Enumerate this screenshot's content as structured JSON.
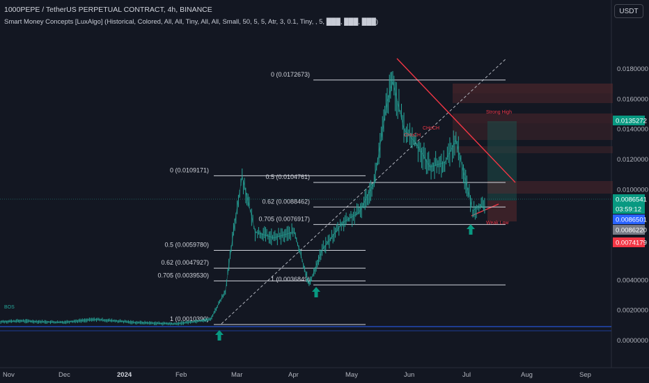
{
  "header": {
    "title": "1000PEPE / TetherUS PERPETUAL CONTRACT, 4h, BINANCE",
    "indicator": "Smart Money Concepts [LuxAlgo] (Historical, Colored, All, All, Tiny, All, All, Small, 50, 5, 5, Atr, 3, 0.1, Tiny, , 5, ███, ███, ███)"
  },
  "currency_button": "USDT",
  "colors": {
    "background": "#131722",
    "candle": "#26a69a",
    "trendline_red": "#f23645",
    "fib_line": "#d1d4dc",
    "arrow": "#089981",
    "zone_red": "#5b2a2e",
    "zone_green": "#1e4d48"
  },
  "chart_data": {
    "type": "line",
    "title": "1000PEPE / TetherUS PERPETUAL CONTRACT, 4h, BINANCE",
    "xlabel": "",
    "ylabel": "",
    "x_ticks": [
      "Nov",
      "Dec",
      "2024",
      "Feb",
      "Mar",
      "Apr",
      "May",
      "Jun",
      "Jul",
      "Aug",
      "Sep"
    ],
    "y_ticks": [
      "0.0180000",
      "0.0160000",
      "0.0140000",
      "0.0120000",
      "0.0100000",
      "0.0040000",
      "0.0020000",
      "0.0000000"
    ],
    "ylim": [
      0,
      0.0195
    ],
    "grid": false,
    "series": [
      {
        "type": "line",
        "x": [
          "2023-10-20",
          "2023-11-10",
          "2023-12-01",
          "2023-12-20",
          "2024-01-10",
          "2024-02-01",
          "2024-02-20",
          "2024-02-28",
          "2024-03-04",
          "2024-03-08",
          "2024-03-15",
          "2024-03-25",
          "2024-04-05",
          "2024-04-13",
          "2024-04-20",
          "2024-05-01",
          "2024-05-10",
          "2024-05-18",
          "2024-05-25",
          "2024-05-28",
          "2024-06-03",
          "2024-06-10",
          "2024-06-17",
          "2024-06-25",
          "2024-07-01",
          "2024-07-05",
          "2024-07-10",
          "2024-07-14",
          "2024-07-17"
        ],
        "y": [
          0.0012,
          0.0013,
          0.0012,
          0.0014,
          0.0012,
          0.0011,
          0.0014,
          0.0033,
          0.0078,
          0.0109,
          0.0072,
          0.0068,
          0.0072,
          0.0037,
          0.006,
          0.0078,
          0.0085,
          0.0105,
          0.0158,
          0.0172,
          0.014,
          0.013,
          0.0115,
          0.0118,
          0.0133,
          0.0112,
          0.0086,
          0.009,
          0.00865
        ]
      }
    ],
    "price_labels": [
      {
        "text": "0.0135272",
        "color": "#089981"
      },
      {
        "text": "0.0086541",
        "color": "#089981"
      },
      {
        "text": "03:59:12",
        "color": "#089981"
      },
      {
        "text": "0.0086501",
        "color": "#2962ff"
      },
      {
        "text": "0.0086220",
        "color": "#787b86"
      },
      {
        "text": "0.0074179",
        "color": "#f23645"
      }
    ],
    "fib_sets": [
      {
        "levels": [
          {
            "text": "0 (0.0109171)",
            "value": 0.0109171
          },
          {
            "text": "0.5 (0.0059780)",
            "value": 0.005978
          },
          {
            "text": "0.62 (0.0047927)",
            "value": 0.0047927
          },
          {
            "text": "0.705 (0.0039530)",
            "value": 0.003953
          },
          {
            "text": "1 (0.0010390)",
            "value": 0.001039
          }
        ]
      },
      {
        "levels": [
          {
            "text": "0 (0.0172673)",
            "value": 0.0172673
          },
          {
            "text": "0.5 (0.0104761)",
            "value": 0.0104761
          },
          {
            "text": "0.62 (0.0088462)",
            "value": 0.0088462
          },
          {
            "text": "0.705 (0.0076917)",
            "value": 0.0076917
          },
          {
            "text": "1 (0.0036849)",
            "value": 0.0036849
          }
        ]
      }
    ],
    "annotations": [
      "BOS",
      "CHoCH",
      "CHoCH",
      "Strong High",
      "Weak Low"
    ]
  }
}
